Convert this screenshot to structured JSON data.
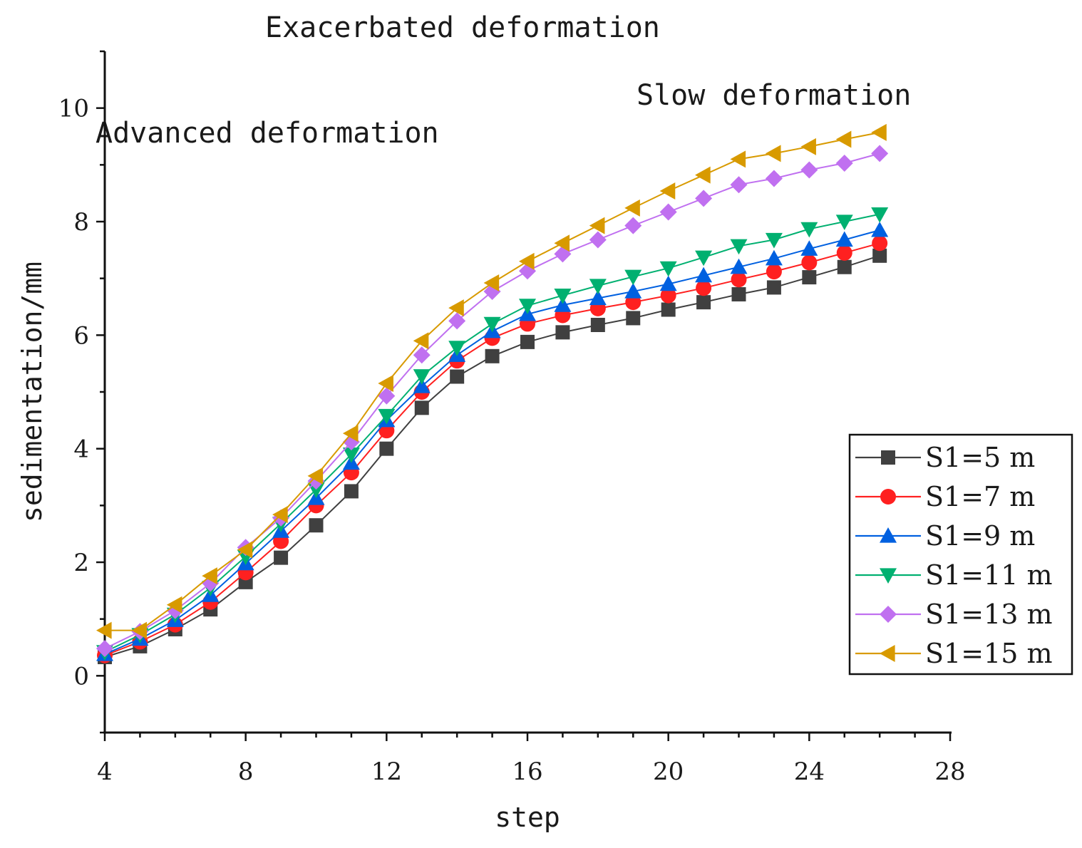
{
  "chart_data": {
    "type": "line",
    "title": "",
    "xlabel": "step",
    "ylabel": "sedimentation/mm",
    "xlim": [
      4,
      28
    ],
    "ylim": [
      -1,
      11
    ],
    "xticks": [
      4,
      8,
      12,
      16,
      20,
      24,
      28
    ],
    "yticks": [
      0,
      2,
      4,
      6,
      8,
      10
    ],
    "grid": false,
    "legend_position": "lower-right",
    "annotations": [
      {
        "text": "Exacerbated deformation"
      },
      {
        "text": "Slow deformation"
      },
      {
        "text": "Advanced deformation"
      }
    ],
    "x": [
      4,
      5,
      6,
      7,
      8,
      9,
      10,
      11,
      12,
      13,
      14,
      15,
      16,
      17,
      18,
      19,
      20,
      21,
      22,
      23,
      24,
      25,
      26
    ],
    "series": [
      {
        "name": "S1=5 m",
        "marker": "square",
        "color": "#404040",
        "values": [
          0.33,
          0.52,
          0.82,
          1.17,
          1.65,
          2.08,
          2.65,
          3.25,
          4.0,
          4.72,
          5.27,
          5.63,
          5.88,
          6.05,
          6.18,
          6.3,
          6.45,
          6.58,
          6.72,
          6.84,
          7.02,
          7.2,
          7.4
        ]
      },
      {
        "name": "S1=7 m",
        "marker": "circle",
        "color": "#ff2020",
        "values": [
          0.36,
          0.6,
          0.9,
          1.3,
          1.82,
          2.37,
          3.0,
          3.58,
          4.32,
          5.0,
          5.55,
          5.95,
          6.2,
          6.35,
          6.47,
          6.58,
          6.7,
          6.83,
          6.98,
          7.12,
          7.28,
          7.45,
          7.62
        ]
      },
      {
        "name": "S1=9 m",
        "marker": "triangle-up",
        "color": "#0060e0",
        "values": [
          0.38,
          0.65,
          0.98,
          1.42,
          1.98,
          2.55,
          3.13,
          3.75,
          4.5,
          5.1,
          5.65,
          6.07,
          6.37,
          6.53,
          6.65,
          6.77,
          6.9,
          7.05,
          7.2,
          7.35,
          7.52,
          7.68,
          7.85
        ]
      },
      {
        "name": "S1=11 m",
        "marker": "triangle-down",
        "color": "#00b070",
        "values": [
          0.42,
          0.72,
          1.08,
          1.55,
          2.1,
          2.68,
          3.28,
          3.9,
          4.58,
          5.28,
          5.78,
          6.2,
          6.52,
          6.7,
          6.87,
          7.03,
          7.18,
          7.37,
          7.57,
          7.68,
          7.87,
          8.0,
          8.13
        ]
      },
      {
        "name": "S1=13 m",
        "marker": "diamond",
        "color": "#c070f0",
        "values": [
          0.48,
          0.78,
          1.15,
          1.63,
          2.26,
          2.78,
          3.43,
          4.12,
          4.93,
          5.65,
          6.25,
          6.77,
          7.13,
          7.43,
          7.68,
          7.93,
          8.17,
          8.41,
          8.65,
          8.76,
          8.91,
          9.03,
          9.2
        ]
      },
      {
        "name": "S1=15 m",
        "marker": "triangle-left",
        "color": "#d89a00",
        "values": [
          0.8,
          0.8,
          1.25,
          1.76,
          2.22,
          2.84,
          3.52,
          4.27,
          5.15,
          5.9,
          6.48,
          6.92,
          7.3,
          7.62,
          7.93,
          8.24,
          8.54,
          8.82,
          9.1,
          9.2,
          9.32,
          9.45,
          9.57
        ]
      }
    ]
  }
}
